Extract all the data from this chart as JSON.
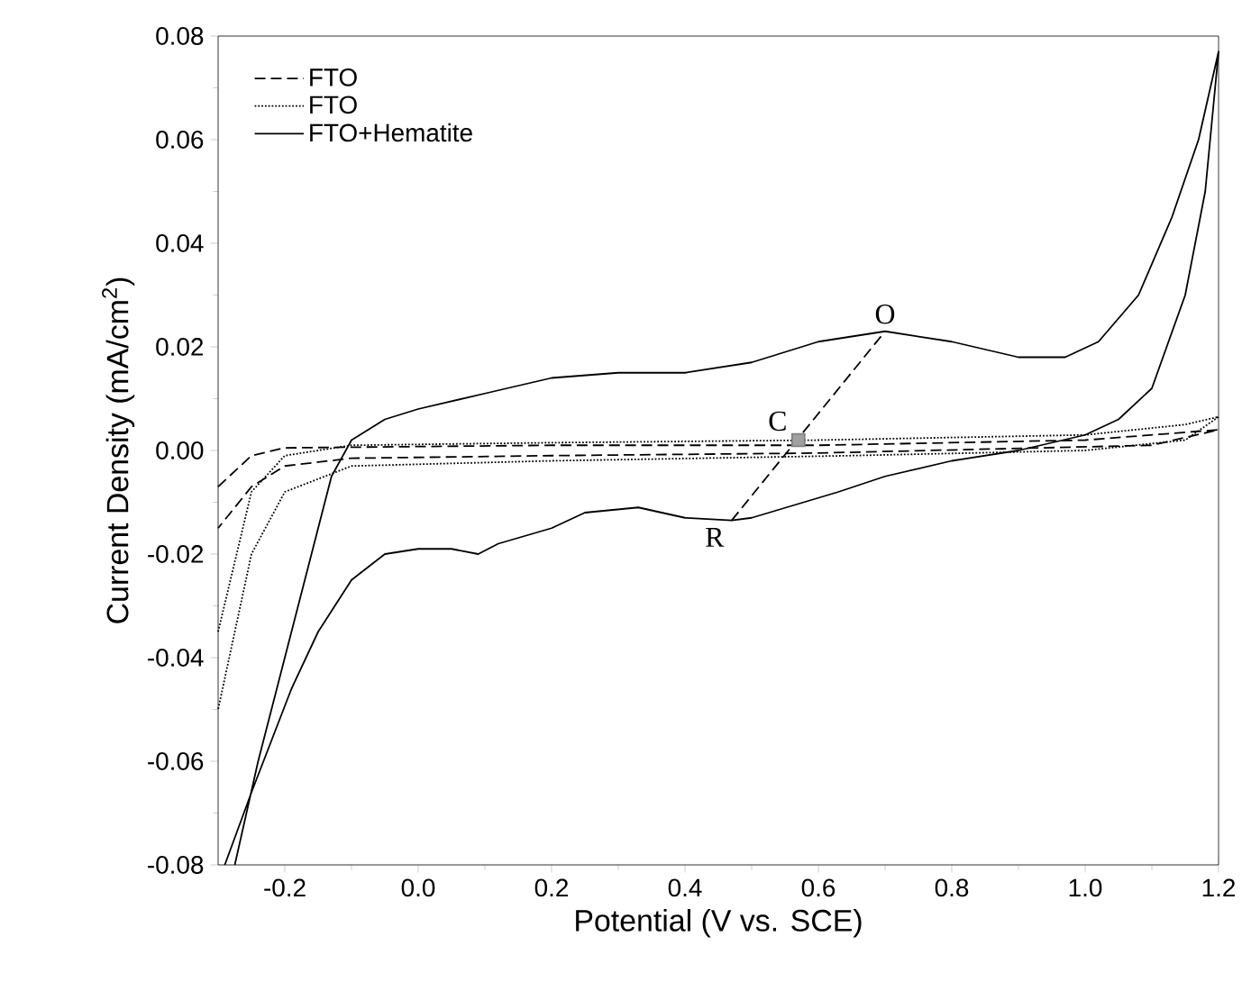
{
  "chart_data": {
    "type": "line",
    "xlabel": "Potential (V vs. SCE)",
    "ylabel": "Current Density (mA/cm$^{2}$)",
    "xlim": [
      -0.3,
      1.2
    ],
    "ylim": [
      -0.08,
      0.08
    ],
    "xticks": [
      {
        "value": -0.2,
        "label": "-0.2"
      },
      {
        "value": 0,
        "label": "0.0"
      },
      {
        "value": 0.2,
        "label": "0.2"
      },
      {
        "value": 0.4,
        "label": "0.4"
      },
      {
        "value": 0.6,
        "label": "0.6"
      },
      {
        "value": 0.8,
        "label": "0.8"
      },
      {
        "value": 1,
        "label": "1.0"
      },
      {
        "value": 1.2,
        "label": "1.2"
      }
    ],
    "yticks": [
      {
        "value": -0.08,
        "label": "-0.08"
      },
      {
        "value": -0.06,
        "label": "-0.06"
      },
      {
        "value": -0.04,
        "label": "-0.04"
      },
      {
        "value": -0.02,
        "label": "-0.02"
      },
      {
        "value": 0,
        "label": "0.00"
      },
      {
        "value": 0.02,
        "label": "0.02"
      },
      {
        "value": 0.04,
        "label": "0.04"
      },
      {
        "value": 0.06,
        "label": "0.06"
      },
      {
        "value": 0.08,
        "label": "0.08"
      }
    ],
    "legend": "top left",
    "marker": "none",
    "series": [
      {
        "name": "FTO",
        "color": "#000000",
        "line_style": "dashed",
        "x": [
          -0.3,
          -0.25,
          -0.2,
          0.2,
          0.6,
          1.0,
          1.2,
          1.1,
          0.6,
          0.2,
          -0.1,
          -0.2,
          -0.25,
          -0.3
        ],
        "values": [
          -0.007,
          -0.001,
          0.0005,
          0.001,
          0.001,
          0.002,
          0.004,
          0.001,
          -0.0005,
          -0.001,
          -0.0015,
          -0.003,
          -0.007,
          -0.015
        ]
      },
      {
        "name": "FTO",
        "color": "#000000",
        "line_style": "dotted",
        "x": [
          -0.3,
          -0.25,
          -0.2,
          -0.1,
          0.2,
          0.6,
          1.0,
          1.15,
          1.2,
          1.15,
          1.0,
          0.65,
          0.2,
          -0.1,
          -0.2,
          -0.25,
          -0.3
        ],
        "values": [
          -0.035,
          -0.008,
          -0.001,
          0.001,
          0.0015,
          0.002,
          0.003,
          0.005,
          0.0065,
          0.002,
          0.0,
          -0.001,
          -0.002,
          -0.003,
          -0.008,
          -0.02,
          -0.05
        ]
      },
      {
        "name": "FTO+Hematite",
        "color": "#000000",
        "line_style": "solid",
        "x": [
          -0.275,
          -0.24,
          -0.2,
          -0.16,
          -0.13,
          -0.1,
          -0.05,
          0,
          0.1,
          0.2,
          0.3,
          0.4,
          0.5,
          0.6,
          0.7,
          0.8,
          0.9,
          0.97,
          1.02,
          1.08,
          1.13,
          1.17,
          1.2,
          1.18,
          1.15,
          1.1,
          1.05,
          1.0,
          0.9,
          0.8,
          0.7,
          0.63,
          0.5,
          0.47,
          0.4,
          0.33,
          0.25,
          0.2,
          0.12,
          0.09,
          0.05,
          0,
          -0.05,
          -0.1,
          -0.15,
          -0.19,
          -0.25,
          -0.29
        ],
        "values": [
          -0.08,
          -0.06,
          -0.04,
          -0.02,
          -0.005,
          0.002,
          0.006,
          0.008,
          0.011,
          0.014,
          0.015,
          0.015,
          0.017,
          0.021,
          0.023,
          0.021,
          0.018,
          0.018,
          0.021,
          0.03,
          0.045,
          0.06,
          0.077,
          0.05,
          0.03,
          0.012,
          0.006,
          0.003,
          0.0,
          -0.002,
          -0.005,
          -0.008,
          -0.013,
          -0.0135,
          -0.013,
          -0.011,
          -0.012,
          -0.015,
          -0.018,
          -0.02,
          -0.019,
          -0.019,
          -0.02,
          -0.025,
          -0.035,
          -0.046,
          -0.066,
          -0.08
        ]
      },
      {
        "color": "#000000",
        "line_style": "dashed",
        "x": [
          0.47,
          0.7
        ],
        "values": [
          -0.0135,
          0.023
        ]
      },
      {
        "type": "scatter",
        "marker": "square",
        "color": "#a0a0a0",
        "x": [
          0.57
        ],
        "values": [
          0.002
        ]
      }
    ],
    "annotations": [
      {
        "text": "O",
        "x": 0.7,
        "y": 0.023
      },
      {
        "text": "R",
        "x": 0.47,
        "y": -0.0135
      },
      {
        "text": "C",
        "x": 0.57,
        "y": 0.002
      }
    ]
  }
}
